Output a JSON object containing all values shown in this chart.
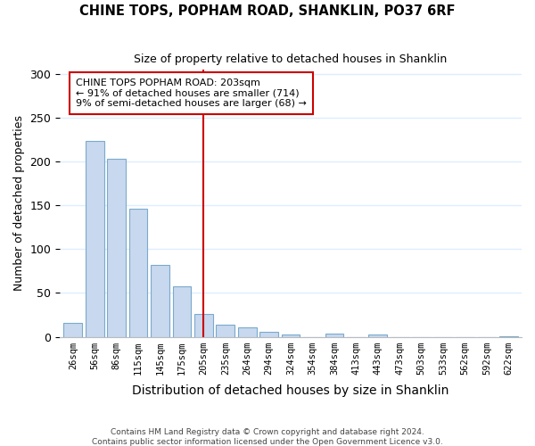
{
  "title": "CHINE TOPS, POPHAM ROAD, SHANKLIN, PO37 6RF",
  "subtitle": "Size of property relative to detached houses in Shanklin",
  "xlabel": "Distribution of detached houses by size in Shanklin",
  "ylabel": "Number of detached properties",
  "bar_color": "#c8d8ee",
  "bar_edge_color": "#7aaacc",
  "categories": [
    "26sqm",
    "56sqm",
    "86sqm",
    "115sqm",
    "145sqm",
    "175sqm",
    "205sqm",
    "235sqm",
    "264sqm",
    "294sqm",
    "324sqm",
    "354sqm",
    "384sqm",
    "413sqm",
    "443sqm",
    "473sqm",
    "503sqm",
    "533sqm",
    "562sqm",
    "592sqm",
    "622sqm"
  ],
  "values": [
    16,
    224,
    203,
    146,
    82,
    58,
    26,
    14,
    11,
    6,
    3,
    0,
    4,
    0,
    3,
    0,
    0,
    0,
    0,
    0,
    1
  ],
  "vline_x": 6,
  "vline_color": "#cc0000",
  "annotation_title": "CHINE TOPS POPHAM ROAD: 203sqm",
  "annotation_line1": "← 91% of detached houses are smaller (714)",
  "annotation_line2": "9% of semi-detached houses are larger (68) →",
  "annotation_box_facecolor": "#ffffff",
  "annotation_box_edgecolor": "#cc0000",
  "ylim": [
    0,
    305
  ],
  "yticks": [
    0,
    50,
    100,
    150,
    200,
    250,
    300
  ],
  "footer1": "Contains HM Land Registry data © Crown copyright and database right 2024.",
  "footer2": "Contains public sector information licensed under the Open Government Licence v3.0.",
  "background_color": "#ffffff",
  "grid_color": "#ddeeff"
}
